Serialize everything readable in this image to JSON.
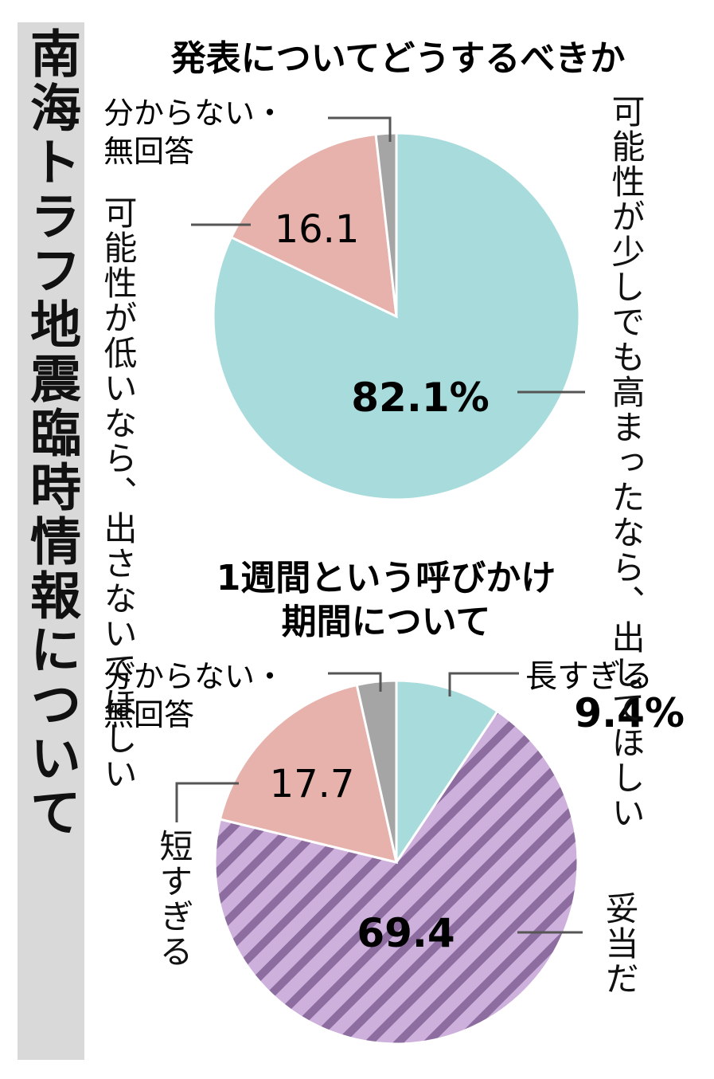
{
  "page": {
    "title": "南海トラフ地震臨時情報について"
  },
  "colors": {
    "cyan": "#a8dcdc",
    "pink": "#e6b2ab",
    "purple": "#cdb0dc",
    "purple_stripe": "#8d6da0",
    "gray": "#a5a5a5",
    "title_band": "#d9d9d9"
  },
  "chart_data": [
    {
      "type": "pie",
      "title": "発表についてどうするべきか",
      "slices": [
        {
          "label": "可能性が少しでも高まったなら、出してほしい",
          "value": 82.1,
          "value_label": "82.1%",
          "color": "#a8dcdc"
        },
        {
          "label": "可能性が低いなら、出さないでほしい",
          "value": 16.1,
          "value_label": "16.1",
          "color": "#e6b2ab"
        },
        {
          "label": "分からない・無回答",
          "value": 1.8,
          "value_label": "",
          "color": "#a5a5a5"
        }
      ],
      "legend_line_dontknow_1": "分からない・",
      "legend_line_dontknow_2": "無回答"
    },
    {
      "type": "pie",
      "title": "1週間という呼びかけ期間について",
      "title_line_1": "1週間という呼びかけ",
      "title_line_2": "期間について",
      "slices": [
        {
          "label": "長すぎる",
          "value": 9.4,
          "value_label": "9.4%",
          "color": "#a8dcdc"
        },
        {
          "label": "妥当だ",
          "value": 69.4,
          "value_label": "69.4",
          "color": "#cdb0dc",
          "hatched": true
        },
        {
          "label": "短すぎる",
          "value": 17.7,
          "value_label": "17.7",
          "color": "#e6b2ab"
        },
        {
          "label": "分からない・無回答",
          "value": 3.5,
          "value_label": "",
          "color": "#a5a5a5"
        }
      ],
      "legend_line_dontknow_1": "分からない・",
      "legend_line_dontknow_2": "無回答"
    }
  ]
}
